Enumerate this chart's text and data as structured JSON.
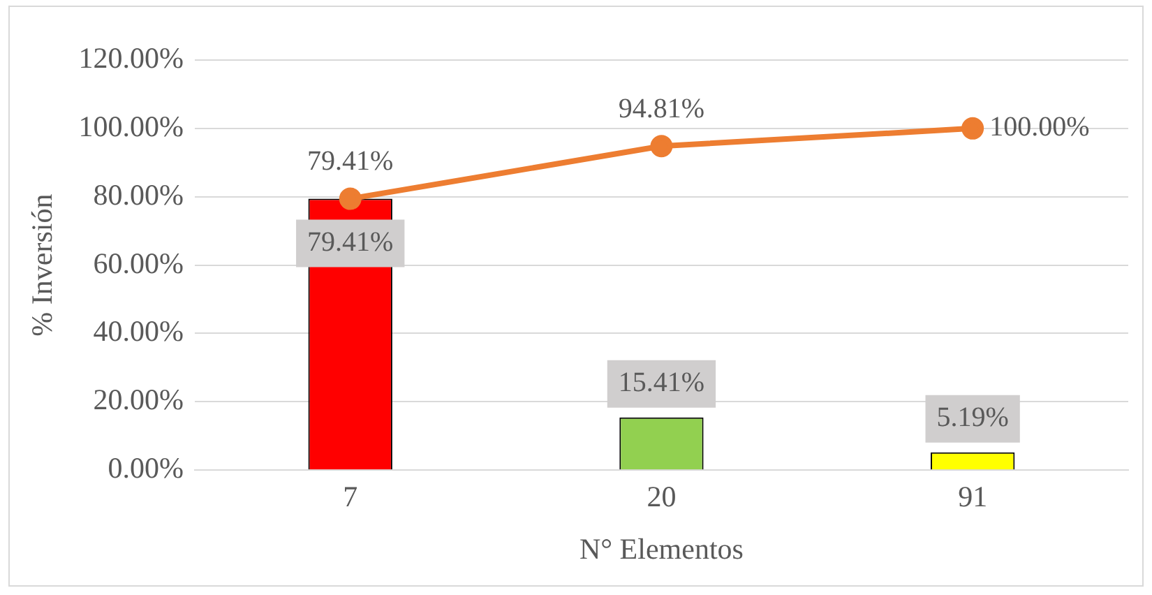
{
  "chart_data": {
    "type": "bar",
    "xlabel": "N° Elementos",
    "ylabel": "% Inversión",
    "categories": [
      "7",
      "20",
      "91"
    ],
    "series": [
      {
        "colors": [
          "#ff0000",
          "#92d050",
          "#ffff00"
        ],
        "values": [
          79.41,
          15.41,
          5.19
        ],
        "value_labels": [
          "79.41%",
          "15.41%",
          "5.19%"
        ]
      },
      {
        "type": "line",
        "color": "#ed7d31",
        "values": [
          79.41,
          94.81,
          100.0
        ],
        "value_labels": [
          "79.41%",
          "94.81%",
          "100.00%"
        ]
      }
    ],
    "ylim": [
      0,
      120
    ],
    "yticks": [
      {
        "value": 0,
        "label": "0.00%"
      },
      {
        "value": 20,
        "label": "20.00%"
      },
      {
        "value": 40,
        "label": "40.00%"
      },
      {
        "value": 60,
        "label": "60.00%"
      },
      {
        "value": 80,
        "label": "80.00%"
      },
      {
        "value": 100,
        "label": "100.00%"
      },
      {
        "value": 120,
        "label": "120.00%"
      }
    ],
    "grid": "y",
    "legend": false,
    "marker": "circle",
    "line_style": "solid"
  }
}
